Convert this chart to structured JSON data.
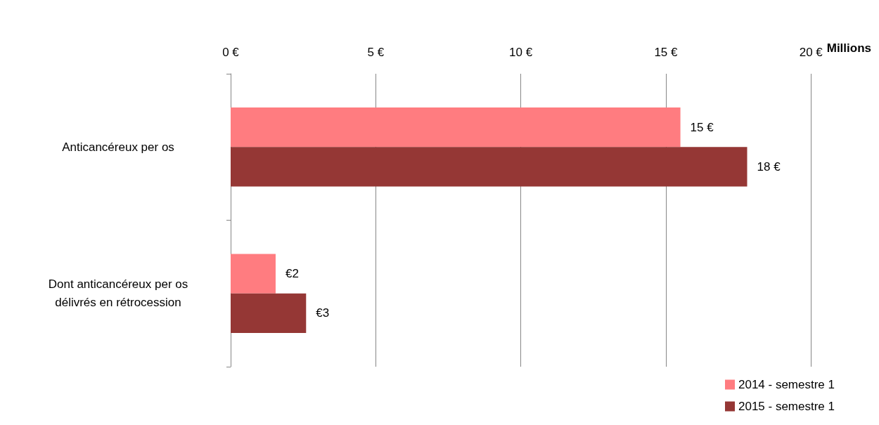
{
  "chart_data": {
    "type": "bar",
    "orientation": "horizontal",
    "xlabel": "Millions",
    "categories": [
      "Anticancéreux per os",
      "Dont anticancéreux per os\ndélivrés en rétrocession"
    ],
    "series": [
      {
        "name": "2014 - semestre 1",
        "color": "#ff7c80",
        "values": [
          15.5,
          1.55
        ],
        "value_labels": [
          "15 €",
          "€2"
        ]
      },
      {
        "name": "2015 - semestre 1",
        "color": "#953735",
        "values": [
          17.8,
          2.6
        ],
        "value_labels": [
          "18 €",
          "€3"
        ]
      }
    ],
    "xlim": [
      0,
      20
    ],
    "xticks": [
      {
        "value": 0,
        "label": "0 €"
      },
      {
        "value": 5,
        "label": "5 €"
      },
      {
        "value": 10,
        "label": "10 €"
      },
      {
        "value": 15,
        "label": "15 €"
      },
      {
        "value": 20,
        "label": "20 €"
      }
    ],
    "grid": "x",
    "legend": "bottom right"
  }
}
